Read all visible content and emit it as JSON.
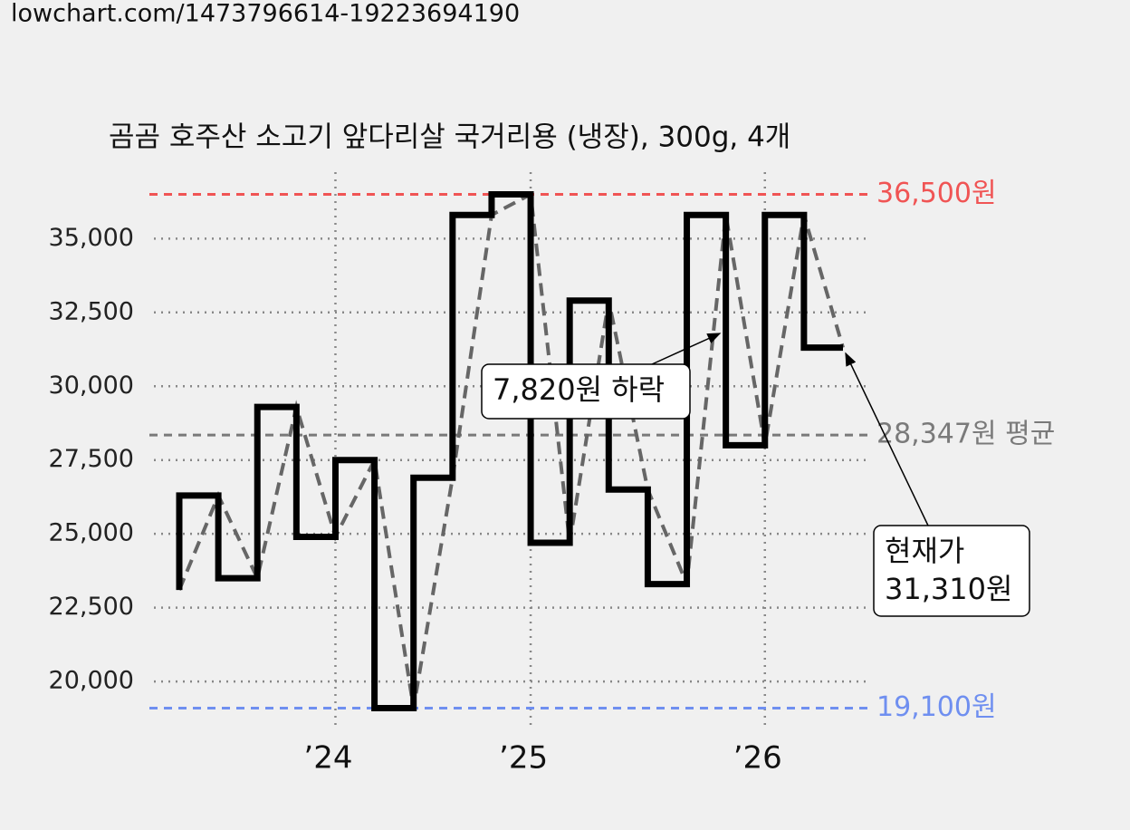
{
  "url": "lowchart.com/1473796614-19223694190",
  "chart_data": {
    "type": "line",
    "title": "곰곰 호주산 소고기 앞다리살 국거리용 (냉장), 300g, 4개",
    "categories": [
      null,
      null,
      null,
      null,
      "’24",
      null,
      null,
      null,
      null,
      "’25",
      null,
      null,
      null,
      null,
      null,
      "’26",
      null,
      null
    ],
    "values": [
      23100,
      26300,
      23500,
      29300,
      24900,
      27500,
      19100,
      26900,
      35800,
      36500,
      24700,
      32900,
      26500,
      23300,
      35800,
      28000,
      35800,
      31310
    ],
    "color": "#000000",
    "dashed_color": "#666666",
    "ylim": [
      18500,
      37250
    ],
    "yticks": [
      {
        "value": 20000,
        "label": "20,000"
      },
      {
        "value": 22500,
        "label": "22,500"
      },
      {
        "value": 25000,
        "label": "25,000"
      },
      {
        "value": 27500,
        "label": "27,500"
      },
      {
        "value": 30000,
        "label": "30,000"
      },
      {
        "value": 32500,
        "label": "32,500"
      },
      {
        "value": 35000,
        "label": "35,000"
      }
    ],
    "grid": true,
    "reference_lines": [
      {
        "value": 36500,
        "label": "36,500원",
        "color": "#f05454"
      },
      {
        "value": 28347,
        "label": "28,347원 평균",
        "color": "#7a7a7a"
      },
      {
        "value": 19100,
        "label": "19,100원",
        "color": "#6f8ff0"
      }
    ],
    "annotations": [
      {
        "lines": [
          "7,820원 하락"
        ]
      },
      {
        "lines": [
          "현재가",
          "31,310원"
        ]
      }
    ]
  }
}
